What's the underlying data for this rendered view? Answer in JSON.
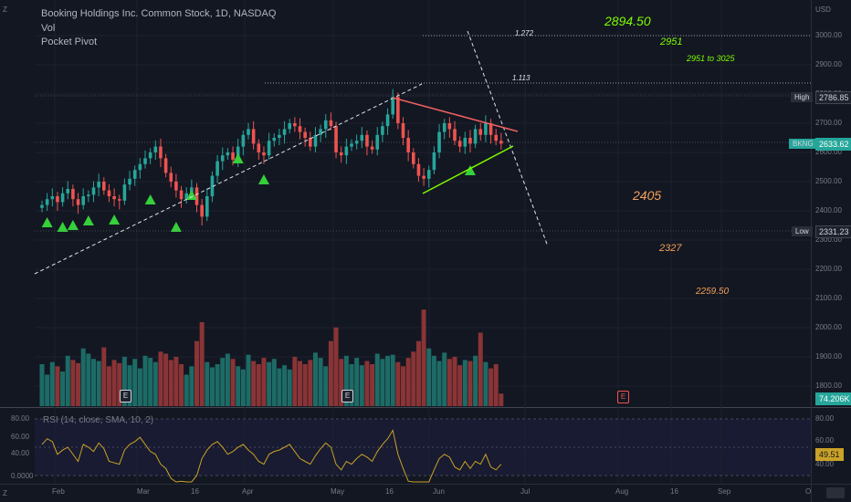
{
  "header": {
    "title": "Booking Holdings Inc. Common Stock, 1D, NASDAQ",
    "indicator1": "Vol",
    "indicator2": "Pocket Pivot"
  },
  "currency": "USD",
  "price_axis": [
    "3000.00",
    "2900.00",
    "2800.00",
    "2700.00",
    "2600.00",
    "2500.00",
    "2400.00",
    "2300.00",
    "2200.00",
    "2100.00",
    "2000.00",
    "1900.00",
    "1800.00"
  ],
  "rsi_axis": [
    "80.00",
    "60.00",
    "40.00"
  ],
  "rsi_left_axis": [
    "80.00",
    "60.00",
    "40.00",
    "0.0000"
  ],
  "time_axis": [
    "Feb",
    "Mar",
    "16",
    "Apr",
    "May",
    "16",
    "Jun",
    "Jul",
    "Aug",
    "16",
    "Sep",
    "O"
  ],
  "tags": {
    "high_label": "High",
    "high_value": "2786.85",
    "ticker_label": "BKNG",
    "ticker_value": "2633.62",
    "low_label": "Low",
    "low_value": "2331.23",
    "volume_value": "74.206K",
    "rsi_value": "49.51"
  },
  "annotations": {
    "fib_1272": "1.272",
    "fib_1113": "1.113",
    "target_2894": "2894.50",
    "target_2951": "2951",
    "target_range": "2951 to 3025",
    "target_2405": "2405",
    "target_2327": "2327",
    "target_2259": "2259.50"
  },
  "earnings_marker": "E",
  "rsi_legend": "RSI (14, close, SMA, 10, 2)",
  "side_buttons": {
    "top_left": "Z",
    "bottom_left": "Z"
  },
  "colors": {
    "up": "#26a69a",
    "down": "#ef5350",
    "rsi": "#c9a227",
    "trend_green": "#7cfc00",
    "trend_red": "#f06060",
    "pivot": "#35d03a"
  },
  "chart_data": {
    "type": "candlestick",
    "price_range": [
      1750,
      3080
    ],
    "rsi_range": [
      0,
      90
    ],
    "closes": [
      2420,
      2440,
      2450,
      2430,
      2460,
      2475,
      2440,
      2420,
      2450,
      2455,
      2480,
      2500,
      2470,
      2450,
      2440,
      2435,
      2490,
      2510,
      2540,
      2560,
      2580,
      2600,
      2620,
      2580,
      2530,
      2500,
      2470,
      2440,
      2460,
      2480,
      2420,
      2380,
      2450,
      2520,
      2570,
      2590,
      2600,
      2575,
      2620,
      2660,
      2680,
      2630,
      2600,
      2590,
      2640,
      2650,
      2660,
      2680,
      2700,
      2690,
      2670,
      2650,
      2620,
      2660,
      2680,
      2710,
      2690,
      2600,
      2590,
      2620,
      2630,
      2640,
      2660,
      2620,
      2610,
      2660,
      2690,
      2730,
      2790,
      2700,
      2650,
      2600,
      2560,
      2520,
      2510,
      2540,
      2600,
      2670,
      2700,
      2680,
      2640,
      2620,
      2650,
      2630,
      2680,
      2660,
      2700,
      2660,
      2640,
      2630
    ],
    "volumes": [
      40,
      30,
      42,
      38,
      33,
      48,
      44,
      41,
      55,
      50,
      45,
      43,
      56,
      38,
      44,
      41,
      47,
      39,
      45,
      36,
      48,
      46,
      42,
      52,
      50,
      44,
      47,
      40,
      30,
      38,
      62,
      80,
      42,
      37,
      40,
      46,
      50,
      45,
      38,
      35,
      49,
      43,
      40,
      46,
      42,
      45,
      36,
      39,
      35,
      47,
      43,
      40,
      44,
      51,
      46,
      38,
      62,
      75,
      45,
      48,
      40,
      46,
      39,
      43,
      40,
      50,
      45,
      48,
      49,
      42,
      38,
      46,
      52,
      62,
      92,
      55,
      48,
      43,
      51,
      45,
      47,
      39,
      44,
      43,
      48,
      70,
      42,
      36,
      40,
      12
    ],
    "rsi": [
      62,
      66,
      64,
      55,
      58,
      60,
      55,
      50,
      62,
      60,
      57,
      63,
      59,
      50,
      49,
      48,
      58,
      62,
      64,
      67,
      62,
      57,
      55,
      48,
      45,
      38,
      32,
      36,
      30,
      25,
      40,
      52,
      58,
      62,
      64,
      60,
      55,
      57,
      60,
      62,
      58,
      55,
      50,
      48,
      55,
      57,
      58,
      60,
      62,
      57,
      52,
      50,
      48,
      54,
      59,
      63,
      60,
      48,
      44,
      50,
      48,
      52,
      55,
      53,
      50,
      57,
      62,
      66,
      72,
      55,
      45,
      36,
      32,
      20,
      14,
      30,
      44,
      52,
      55,
      53,
      46,
      44,
      50,
      45,
      50,
      48,
      55,
      46,
      44,
      48
    ],
    "pocket_pivots": [
      1,
      4,
      6,
      9,
      14,
      21,
      26,
      29,
      38,
      43,
      83
    ]
  }
}
